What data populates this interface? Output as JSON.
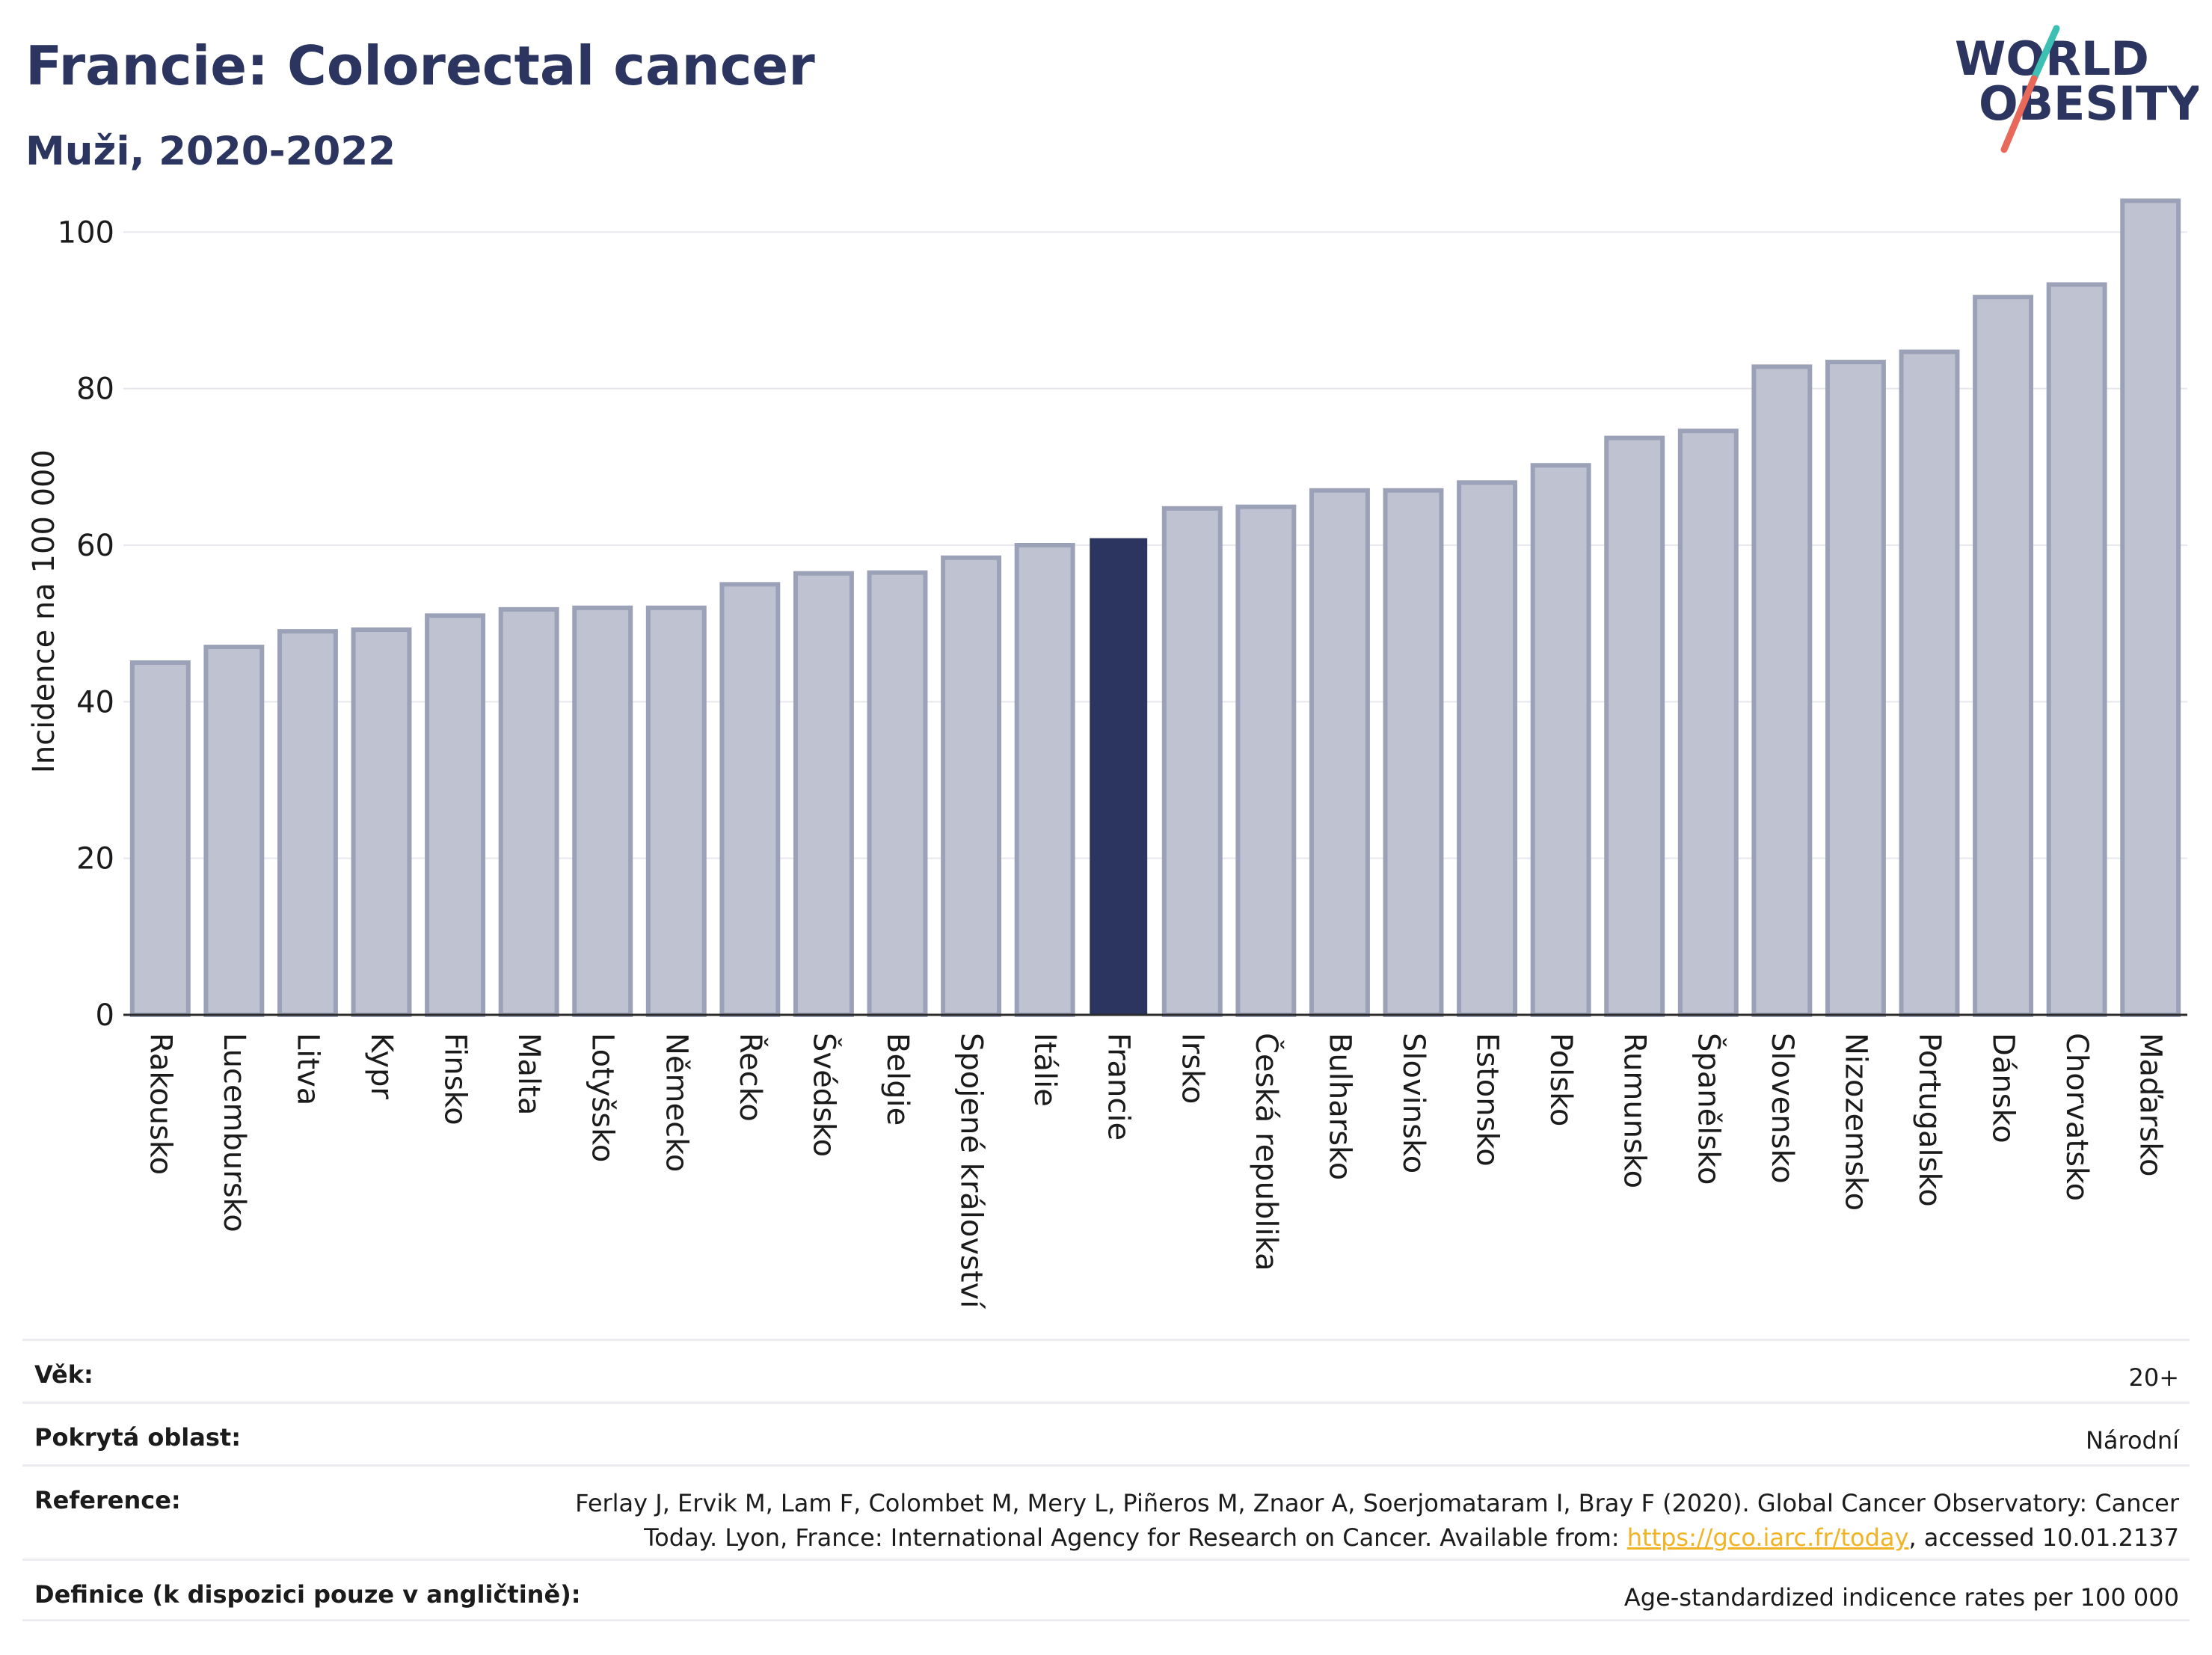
{
  "header": {
    "title": "Francie: Colorectal cancer",
    "subtitle": "Muži, 2020-2022"
  },
  "logo": {
    "line1": "WORLD",
    "line2": "OBESITY"
  },
  "colors": {
    "bar": "#bfc3d1",
    "bar_border": "#9ba1b7",
    "highlight": "#2b3560",
    "text": "#2b3560",
    "grid": "#e6e8ee",
    "link": "#f0b323"
  },
  "chart_data": {
    "type": "bar",
    "ylabel": "Incidence na 100 000",
    "ylim": [
      0,
      105
    ],
    "yticks": [
      0,
      20,
      40,
      60,
      80,
      100
    ],
    "grid": true,
    "highlight": "Francie",
    "categories": [
      "Rakousko",
      "Lucembursko",
      "Litva",
      "Kypr",
      "Finsko",
      "Malta",
      "Lotyšsko",
      "Německo",
      "Řecko",
      "Švédsko",
      "Belgie",
      "Spojené království",
      "Itálie",
      "Francie",
      "Irsko",
      "Česká republika",
      "Bulharsko",
      "Slovinsko",
      "Estonsko",
      "Polsko",
      "Rumunsko",
      "Španělsko",
      "Slovensko",
      "Nizozemsko",
      "Portugalsko",
      "Dánsko",
      "Chorvatsko",
      "Maďarsko"
    ],
    "values": [
      45,
      47,
      49,
      49.2,
      51,
      51.8,
      52,
      52,
      55,
      56.4,
      56.5,
      58.4,
      60,
      60.8,
      64.7,
      64.9,
      67,
      67,
      68,
      70.2,
      73.7,
      74.6,
      82.8,
      83.4,
      84.7,
      91.7,
      93.3,
      104
    ]
  },
  "meta": {
    "age_label": "Věk:",
    "age_value": "20+",
    "area_label": "Pokrytá oblast:",
    "area_value": "Národní",
    "ref_label": "Reference:",
    "ref_line1": "Ferlay J, Ervik M, Lam F, Colombet M, Mery L, Piñeros M, Znaor A, Soerjomataram I, Bray F (2020). Global Cancer Observatory: Cancer",
    "ref_line2_pre": "Today. Lyon, France: International Agency for Research on Cancer. Available from: ",
    "ref_link": "https://gco.iarc.fr/today",
    "ref_line2_post": ", accessed 10.01.2137",
    "def_label": "Definice (k dispozici pouze v angličtině):",
    "def_value": "Age-standardized indicence rates per 100 000"
  }
}
